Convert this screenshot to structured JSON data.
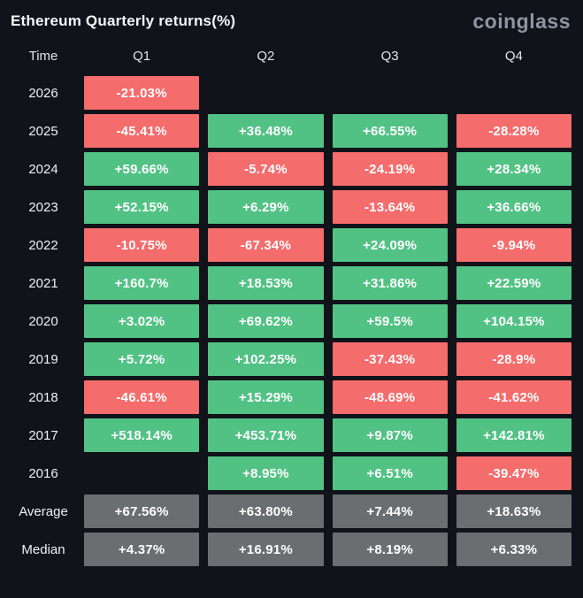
{
  "header": {
    "title": "Ethereum Quarterly returns(%)",
    "logo": "coinglass"
  },
  "colors": {
    "background": "#10131a",
    "positive": "#52c284",
    "negative": "#f56c6c",
    "summary": "#6b6e71",
    "text": "#ffffff"
  },
  "chart_data": {
    "type": "table",
    "title": "Ethereum Quarterly returns(%)",
    "columns": [
      "Time",
      "Q1",
      "Q2",
      "Q3",
      "Q4"
    ],
    "rows": [
      {
        "label": "2026",
        "cells": [
          {
            "value": "-21.03%",
            "type": "negative"
          },
          {
            "value": "",
            "type": "empty"
          },
          {
            "value": "",
            "type": "empty"
          },
          {
            "value": "",
            "type": "empty"
          }
        ]
      },
      {
        "label": "2025",
        "cells": [
          {
            "value": "-45.41%",
            "type": "negative"
          },
          {
            "value": "+36.48%",
            "type": "positive"
          },
          {
            "value": "+66.55%",
            "type": "positive"
          },
          {
            "value": "-28.28%",
            "type": "negative"
          }
        ]
      },
      {
        "label": "2024",
        "cells": [
          {
            "value": "+59.66%",
            "type": "positive"
          },
          {
            "value": "-5.74%",
            "type": "negative"
          },
          {
            "value": "-24.19%",
            "type": "negative"
          },
          {
            "value": "+28.34%",
            "type": "positive"
          }
        ]
      },
      {
        "label": "2023",
        "cells": [
          {
            "value": "+52.15%",
            "type": "positive"
          },
          {
            "value": "+6.29%",
            "type": "positive"
          },
          {
            "value": "-13.64%",
            "type": "negative"
          },
          {
            "value": "+36.66%",
            "type": "positive"
          }
        ]
      },
      {
        "label": "2022",
        "cells": [
          {
            "value": "-10.75%",
            "type": "negative"
          },
          {
            "value": "-67.34%",
            "type": "negative"
          },
          {
            "value": "+24.09%",
            "type": "positive"
          },
          {
            "value": "-9.94%",
            "type": "negative"
          }
        ]
      },
      {
        "label": "2021",
        "cells": [
          {
            "value": "+160.7%",
            "type": "positive"
          },
          {
            "value": "+18.53%",
            "type": "positive"
          },
          {
            "value": "+31.86%",
            "type": "positive"
          },
          {
            "value": "+22.59%",
            "type": "positive"
          }
        ]
      },
      {
        "label": "2020",
        "cells": [
          {
            "value": "+3.02%",
            "type": "positive"
          },
          {
            "value": "+69.62%",
            "type": "positive"
          },
          {
            "value": "+59.5%",
            "type": "positive"
          },
          {
            "value": "+104.15%",
            "type": "positive"
          }
        ]
      },
      {
        "label": "2019",
        "cells": [
          {
            "value": "+5.72%",
            "type": "positive"
          },
          {
            "value": "+102.25%",
            "type": "positive"
          },
          {
            "value": "-37.43%",
            "type": "negative"
          },
          {
            "value": "-28.9%",
            "type": "negative"
          }
        ]
      },
      {
        "label": "2018",
        "cells": [
          {
            "value": "-46.61%",
            "type": "negative"
          },
          {
            "value": "+15.29%",
            "type": "positive"
          },
          {
            "value": "-48.69%",
            "type": "negative"
          },
          {
            "value": "-41.62%",
            "type": "negative"
          }
        ]
      },
      {
        "label": "2017",
        "cells": [
          {
            "value": "+518.14%",
            "type": "positive"
          },
          {
            "value": "+453.71%",
            "type": "positive"
          },
          {
            "value": "+9.87%",
            "type": "positive"
          },
          {
            "value": "+142.81%",
            "type": "positive"
          }
        ]
      },
      {
        "label": "2016",
        "cells": [
          {
            "value": "",
            "type": "empty"
          },
          {
            "value": "+8.95%",
            "type": "positive"
          },
          {
            "value": "+6.51%",
            "type": "positive"
          },
          {
            "value": "-39.47%",
            "type": "negative"
          }
        ]
      },
      {
        "label": "Average",
        "cells": [
          {
            "value": "+67.56%",
            "type": "summary"
          },
          {
            "value": "+63.80%",
            "type": "summary"
          },
          {
            "value": "+7.44%",
            "type": "summary"
          },
          {
            "value": "+18.63%",
            "type": "summary"
          }
        ]
      },
      {
        "label": "Median",
        "cells": [
          {
            "value": "+4.37%",
            "type": "summary"
          },
          {
            "value": "+16.91%",
            "type": "summary"
          },
          {
            "value": "+8.19%",
            "type": "summary"
          },
          {
            "value": "+6.33%",
            "type": "summary"
          }
        ]
      }
    ]
  }
}
